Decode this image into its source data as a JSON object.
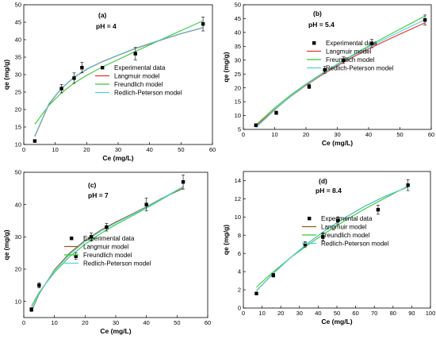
{
  "chart_data": [
    {
      "type": "scatter",
      "panel_label": "(a)",
      "annotation": "pH = 4",
      "xlabel": "Ce (mg/L)",
      "ylabel": "qe (mg/g)",
      "xlim": [
        0,
        60
      ],
      "ylim": [
        10,
        50
      ],
      "xticks": [
        0,
        10,
        20,
        30,
        40,
        50,
        60
      ],
      "yticks": [
        10,
        15,
        20,
        25,
        30,
        35,
        40,
        45,
        50
      ],
      "legend_position": "bottom-right",
      "series": [
        {
          "name": "Experimental data",
          "kind": "points",
          "x": [
            3.5,
            12,
            16,
            18.5,
            35.5,
            57
          ],
          "y": [
            11,
            26,
            29,
            32,
            36,
            44.5
          ],
          "err": [
            0,
            1.2,
            1.5,
            1.5,
            1.8,
            2
          ]
        },
        {
          "name": "Langmuir model",
          "kind": "line",
          "color": "#e8312f",
          "x": [
            3.5,
            8,
            12,
            16,
            20,
            25,
            30,
            35,
            40,
            45,
            50,
            57
          ],
          "y": [
            12.3,
            21.5,
            26.1,
            29.2,
            31.5,
            33.7,
            35.5,
            37.3,
            38.8,
            40.3,
            41.7,
            43.4
          ]
        },
        {
          "name": "Freundlich model",
          "kind": "line",
          "color": "#31c93a",
          "x": [
            3.5,
            8,
            12,
            16,
            20,
            25,
            30,
            35,
            40,
            45,
            50,
            57
          ],
          "y": [
            15.8,
            21.2,
            24.8,
            27.6,
            29.8,
            32.2,
            34.3,
            36.4,
            38.5,
            40.6,
            42.6,
            45.4
          ]
        },
        {
          "name": "Redlich-Peterson model",
          "kind": "line",
          "color": "#4fd1e0",
          "x": [
            3.5,
            8,
            12,
            16,
            20,
            25,
            30,
            35,
            40,
            45,
            50,
            57
          ],
          "y": [
            12.5,
            21.7,
            26.2,
            29.3,
            31.6,
            33.8,
            35.6,
            37.4,
            38.9,
            40.4,
            41.8,
            43.5
          ]
        }
      ]
    },
    {
      "type": "scatter",
      "panel_label": "(b)",
      "annotation": "pH = 5.4",
      "xlabel": "Ce (mg/L)",
      "ylabel": "qe (mg/g)",
      "xlim": [
        0,
        60
      ],
      "ylim": [
        5,
        50
      ],
      "xticks": [
        0,
        10,
        20,
        30,
        40,
        50,
        60
      ],
      "yticks": [
        5,
        10,
        15,
        20,
        25,
        30,
        35,
        40,
        45,
        50
      ],
      "legend_position": "bottom-right",
      "series": [
        {
          "name": "Experimental data",
          "kind": "points",
          "x": [
            4,
            10.5,
            21,
            26,
            32,
            41,
            58
          ],
          "y": [
            6.5,
            11,
            20.5,
            26.5,
            30,
            36,
            44.5
          ],
          "err": [
            0.5,
            0.6,
            0.8,
            1.2,
            1.2,
            1.5,
            1.8
          ]
        },
        {
          "name": "Langmuir model",
          "kind": "line",
          "color": "#e8312f",
          "x": [
            4,
            10,
            15,
            20,
            25,
            30,
            35,
            40,
            45,
            50,
            58
          ],
          "y": [
            6.2,
            12.2,
            16.8,
            20.9,
            24.6,
            28.0,
            31.1,
            34.0,
            36.8,
            39.4,
            43.5
          ]
        },
        {
          "name": "Freundlich model",
          "kind": "line",
          "color": "#31c93a",
          "x": [
            4,
            10,
            15,
            20,
            25,
            30,
            35,
            40,
            45,
            50,
            58
          ],
          "y": [
            6.6,
            12.8,
            17.3,
            21.4,
            25.1,
            28.6,
            31.9,
            35.1,
            38.2,
            41.2,
            45.9
          ]
        },
        {
          "name": "Redlich-Peterson model",
          "kind": "line",
          "color": "#4fd1e0",
          "x": [
            4,
            10,
            15,
            20,
            25,
            30,
            35,
            40,
            45,
            50,
            58
          ],
          "y": [
            5.6,
            12.0,
            16.9,
            21.1,
            24.9,
            28.4,
            31.6,
            34.6,
            37.5,
            40.3,
            44.6
          ]
        }
      ]
    },
    {
      "type": "scatter",
      "panel_label": "(c)",
      "annotation": "pH = 7",
      "xlabel": "Ce (mg/L)",
      "ylabel": "qe (mg/g)",
      "xlim": [
        0,
        60
      ],
      "ylim": [
        5,
        50
      ],
      "xticks": [
        0,
        10,
        20,
        30,
        40,
        50,
        60
      ],
      "yticks": [
        10,
        20,
        30,
        40,
        50
      ],
      "legend_position": "bottom-right",
      "series": [
        {
          "name": "Experimental data",
          "kind": "points",
          "x": [
            2.5,
            5,
            17,
            22,
            27,
            40,
            52
          ],
          "y": [
            7.5,
            15,
            24,
            30,
            33,
            40,
            47
          ],
          "err": [
            0.6,
            0.8,
            1,
            1.2,
            1.2,
            2,
            2.2
          ]
        },
        {
          "name": "Langmuir model",
          "kind": "line",
          "color": "#8a5a2b",
          "x": [
            2.5,
            5,
            10,
            15,
            20,
            25,
            30,
            35,
            40,
            45,
            52
          ],
          "y": [
            7.0,
            12.3,
            19.8,
            25.0,
            28.9,
            32.0,
            34.6,
            36.9,
            39.3,
            41.9,
            45.0
          ]
        },
        {
          "name": "Freundlich model",
          "kind": "line",
          "color": "#31c93a",
          "x": [
            2.5,
            5,
            10,
            15,
            20,
            25,
            30,
            35,
            40,
            45,
            52
          ],
          "y": [
            8.5,
            12.8,
            19.0,
            23.9,
            27.7,
            31.0,
            33.8,
            36.3,
            38.9,
            41.6,
            45.5
          ]
        },
        {
          "name": "Redlich-Peterson model",
          "kind": "line",
          "color": "#4fd1e0",
          "x": [
            2.5,
            5,
            10,
            15,
            20,
            25,
            30,
            35,
            40,
            45,
            52
          ],
          "y": [
            7.4,
            12.5,
            19.5,
            24.6,
            28.5,
            31.7,
            34.3,
            36.7,
            39.1,
            41.8,
            45.6
          ]
        }
      ]
    },
    {
      "type": "scatter",
      "panel_label": "(d)",
      "annotation": "pH = 8.4",
      "xlabel": "Ce (mg/L)",
      "ylabel": "qe (mg/g)",
      "xlim": [
        0,
        100
      ],
      "ylim": [
        0,
        15
      ],
      "xticks": [
        0,
        10,
        20,
        30,
        40,
        50,
        60,
        70,
        80,
        90,
        100
      ],
      "yticks": [
        0,
        2,
        4,
        6,
        8,
        10,
        12,
        14
      ],
      "legend_position": "bottom-right",
      "series": [
        {
          "name": "Experimental data",
          "kind": "points",
          "x": [
            7,
            16,
            33,
            42.5,
            50.5,
            72,
            88
          ],
          "y": [
            1.6,
            3.6,
            7.0,
            7.8,
            9.6,
            10.8,
            13.5
          ],
          "err": [
            0.1,
            0.2,
            0.3,
            0.4,
            0.4,
            0.5,
            0.6
          ]
        },
        {
          "name": "Langmuir model",
          "kind": "line",
          "color": "#8a5a2b",
          "x": [
            7,
            15,
            25,
            35,
            45,
            55,
            65,
            75,
            88
          ],
          "y": [
            1.9,
            3.6,
            5.5,
            7.2,
            8.7,
            10.0,
            11.2,
            12.2,
            13.3
          ]
        },
        {
          "name": "Freundlich model",
          "kind": "line",
          "color": "#31c93a",
          "x": [
            7,
            15,
            25,
            35,
            45,
            55,
            65,
            75,
            88
          ],
          "y": [
            2.3,
            3.8,
            5.5,
            7.0,
            8.4,
            9.7,
            10.9,
            12.0,
            13.4
          ]
        },
        {
          "name": "Redlich-Peterson model",
          "kind": "line",
          "color": "#4fd1e0",
          "x": [
            7,
            15,
            25,
            35,
            45,
            55,
            65,
            75,
            88
          ],
          "y": [
            1.9,
            3.6,
            5.5,
            7.2,
            8.7,
            10.0,
            11.2,
            12.2,
            13.3
          ]
        }
      ]
    }
  ]
}
